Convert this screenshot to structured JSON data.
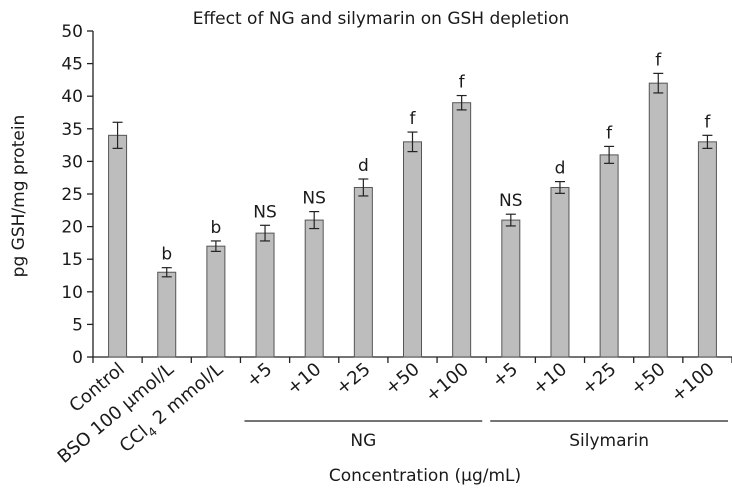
{
  "chart_data": {
    "type": "bar",
    "title": "Effect of NG and silymarin on GSH depletion",
    "ylabel": "pg GSH/mg protein",
    "xlabel": "Concentration (μg/mL)",
    "ylim": [
      0,
      50
    ],
    "yticks": [
      0,
      5,
      10,
      15,
      20,
      25,
      30,
      35,
      40,
      45,
      50
    ],
    "grid": false,
    "legend": "none",
    "categories": [
      "Control",
      "BSO 100 μmol/L",
      "CCl4 2 mmol/L",
      "+5",
      "+10",
      "+25",
      "+50",
      "+100",
      "+5",
      "+10",
      "+25",
      "+50",
      "+100"
    ],
    "cat_sub": [
      "",
      "",
      "4",
      "",
      "",
      "",
      "",
      "",
      "",
      "",
      "",
      "",
      ""
    ],
    "cat_tail": [
      "",
      "",
      " 2 mmol/L",
      "",
      "",
      "",
      "",
      "",
      "",
      "",
      "",
      "",
      ""
    ],
    "cat_head": [
      "Control",
      "BSO 100 μmol/L",
      "CCl",
      "+5",
      "+10",
      "+25",
      "+50",
      "+100",
      "+5",
      "+10",
      "+25",
      "+50",
      "+100"
    ],
    "values": [
      34,
      13,
      17,
      19,
      21,
      26,
      33,
      39,
      21,
      26,
      31,
      42,
      33
    ],
    "errors": [
      2,
      0.7,
      0.8,
      1.2,
      1.3,
      1.3,
      1.5,
      1.1,
      0.9,
      0.9,
      1.3,
      1.5,
      1.0
    ],
    "annotations": [
      "",
      "b",
      "b",
      "NS",
      "NS",
      "d",
      "f",
      "f",
      "NS",
      "d",
      "f",
      "f",
      "f"
    ],
    "groups": [
      {
        "label": "NG",
        "from": 3,
        "to": 7
      },
      {
        "label": "Silymarin",
        "from": 8,
        "to": 12
      }
    ]
  }
}
